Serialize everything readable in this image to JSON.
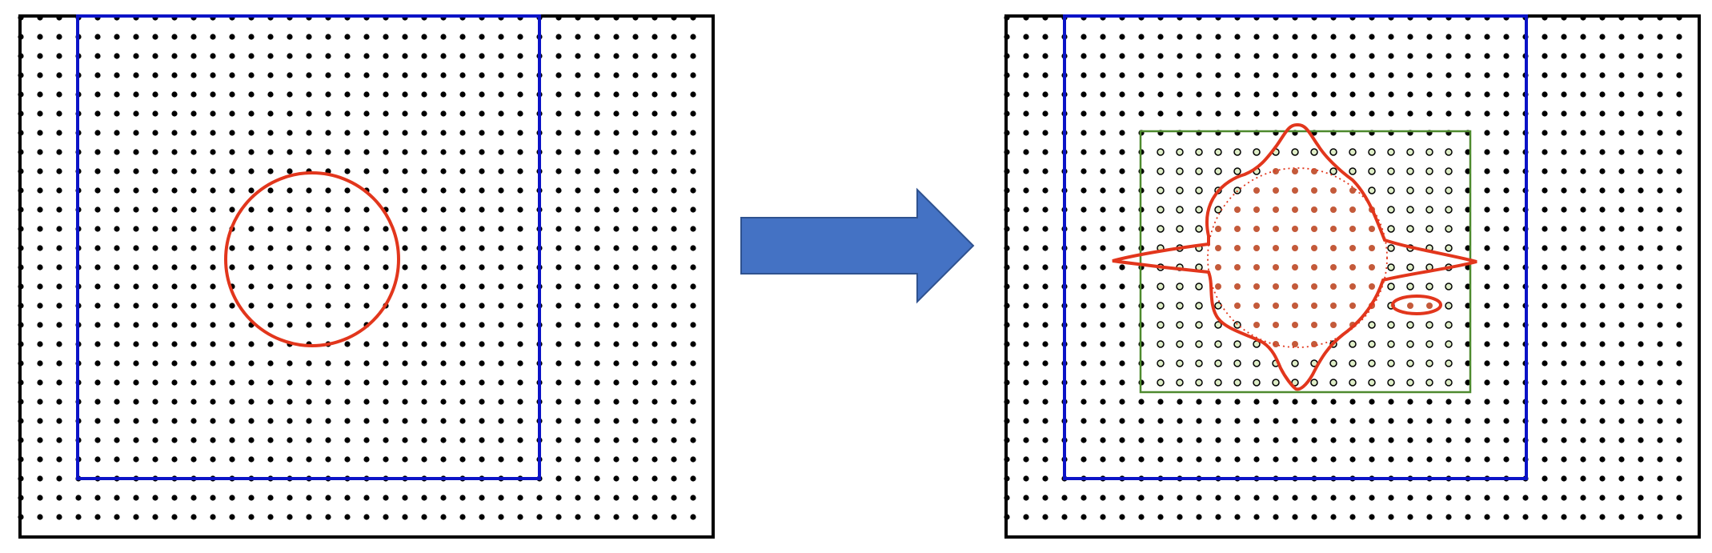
{
  "diagram": {
    "panels": [
      {
        "id": "before",
        "grid": {
          "cols": 36,
          "rows": 27
        },
        "shape": "circle"
      },
      {
        "id": "after",
        "grid": {
          "cols": 36,
          "rows": 27
        },
        "shape": "deformed-star-with-island"
      }
    ],
    "arrow": {
      "direction": "right"
    }
  },
  "colors": {
    "frame": "#000000",
    "dots": "#000000",
    "blue_box": "#0b13c7",
    "interface": "#e2361c",
    "arrow_fill": "#4472c4",
    "arrow_stroke": "#2f528f",
    "refine_box": "#4e8a2e",
    "refine_dot_fill": "#dfeec8",
    "inside_dot": "#c45a3a"
  }
}
